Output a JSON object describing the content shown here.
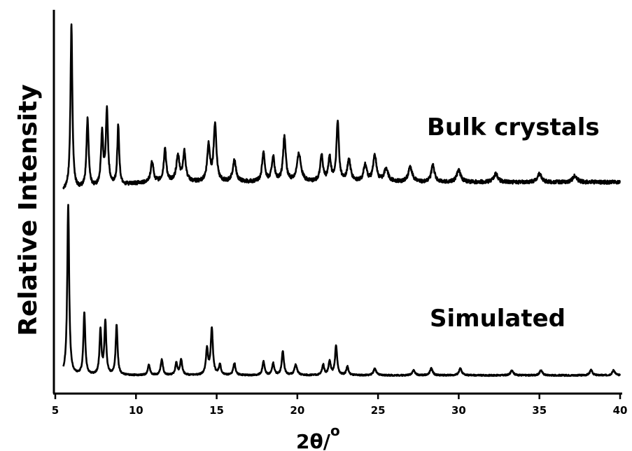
{
  "chart_data": {
    "type": "line",
    "xlabel": "2θ/",
    "xlabel_superscript": "o",
    "ylabel": "Relative Intensity",
    "xlim": [
      5,
      40
    ],
    "xticks": [
      5,
      10,
      15,
      20,
      25,
      30,
      35,
      40
    ],
    "y_ticks_shown": false,
    "grid": false,
    "series": [
      {
        "name": "Bulk crystals",
        "baseline": 0.05,
        "peaks": [
          {
            "x": 6.0,
            "h": 1.0,
            "w": 0.07
          },
          {
            "x": 7.0,
            "h": 0.42,
            "w": 0.08
          },
          {
            "x": 7.9,
            "h": 0.32,
            "w": 0.08
          },
          {
            "x": 8.2,
            "h": 0.46,
            "w": 0.08
          },
          {
            "x": 8.9,
            "h": 0.36,
            "w": 0.07
          },
          {
            "x": 11.0,
            "h": 0.12,
            "w": 0.1
          },
          {
            "x": 11.8,
            "h": 0.2,
            "w": 0.09
          },
          {
            "x": 12.6,
            "h": 0.15,
            "w": 0.12
          },
          {
            "x": 13.0,
            "h": 0.18,
            "w": 0.1
          },
          {
            "x": 14.5,
            "h": 0.22,
            "w": 0.1
          },
          {
            "x": 14.9,
            "h": 0.35,
            "w": 0.1
          },
          {
            "x": 16.1,
            "h": 0.13,
            "w": 0.12
          },
          {
            "x": 17.9,
            "h": 0.18,
            "w": 0.1
          },
          {
            "x": 18.5,
            "h": 0.15,
            "w": 0.1
          },
          {
            "x": 19.2,
            "h": 0.27,
            "w": 0.1
          },
          {
            "x": 20.1,
            "h": 0.17,
            "w": 0.15
          },
          {
            "x": 21.5,
            "h": 0.16,
            "w": 0.1
          },
          {
            "x": 22.0,
            "h": 0.14,
            "w": 0.1
          },
          {
            "x": 22.5,
            "h": 0.36,
            "w": 0.09
          },
          {
            "x": 23.2,
            "h": 0.13,
            "w": 0.12
          },
          {
            "x": 24.2,
            "h": 0.1,
            "w": 0.12
          },
          {
            "x": 24.8,
            "h": 0.16,
            "w": 0.12
          },
          {
            "x": 25.5,
            "h": 0.08,
            "w": 0.15
          },
          {
            "x": 27.0,
            "h": 0.09,
            "w": 0.15
          },
          {
            "x": 28.4,
            "h": 0.1,
            "w": 0.12
          },
          {
            "x": 30.0,
            "h": 0.07,
            "w": 0.15
          },
          {
            "x": 32.3,
            "h": 0.05,
            "w": 0.15
          },
          {
            "x": 35.0,
            "h": 0.05,
            "w": 0.15
          },
          {
            "x": 37.2,
            "h": 0.04,
            "w": 0.15
          }
        ]
      },
      {
        "name": "Simulated",
        "baseline": 0.0,
        "peaks": [
          {
            "x": 5.8,
            "h": 1.0,
            "w": 0.07
          },
          {
            "x": 6.8,
            "h": 0.36,
            "w": 0.07
          },
          {
            "x": 7.8,
            "h": 0.26,
            "w": 0.07
          },
          {
            "x": 8.1,
            "h": 0.31,
            "w": 0.07
          },
          {
            "x": 8.8,
            "h": 0.29,
            "w": 0.07
          },
          {
            "x": 10.8,
            "h": 0.06,
            "w": 0.08
          },
          {
            "x": 11.6,
            "h": 0.09,
            "w": 0.08
          },
          {
            "x": 12.5,
            "h": 0.07,
            "w": 0.08
          },
          {
            "x": 12.8,
            "h": 0.09,
            "w": 0.08
          },
          {
            "x": 14.4,
            "h": 0.15,
            "w": 0.08
          },
          {
            "x": 14.7,
            "h": 0.27,
            "w": 0.08
          },
          {
            "x": 15.2,
            "h": 0.06,
            "w": 0.08
          },
          {
            "x": 16.1,
            "h": 0.07,
            "w": 0.08
          },
          {
            "x": 17.9,
            "h": 0.08,
            "w": 0.08
          },
          {
            "x": 18.5,
            "h": 0.07,
            "w": 0.08
          },
          {
            "x": 19.1,
            "h": 0.14,
            "w": 0.08
          },
          {
            "x": 19.9,
            "h": 0.06,
            "w": 0.1
          },
          {
            "x": 21.6,
            "h": 0.06,
            "w": 0.08
          },
          {
            "x": 22.0,
            "h": 0.08,
            "w": 0.08
          },
          {
            "x": 22.4,
            "h": 0.17,
            "w": 0.08
          },
          {
            "x": 23.1,
            "h": 0.05,
            "w": 0.08
          },
          {
            "x": 24.8,
            "h": 0.04,
            "w": 0.1
          },
          {
            "x": 27.2,
            "h": 0.03,
            "w": 0.1
          },
          {
            "x": 28.3,
            "h": 0.04,
            "w": 0.1
          },
          {
            "x": 30.1,
            "h": 0.04,
            "w": 0.1
          },
          {
            "x": 33.3,
            "h": 0.03,
            "w": 0.1
          },
          {
            "x": 35.1,
            "h": 0.03,
            "w": 0.1
          },
          {
            "x": 38.2,
            "h": 0.03,
            "w": 0.1
          },
          {
            "x": 39.6,
            "h": 0.03,
            "w": 0.1
          }
        ]
      }
    ]
  }
}
